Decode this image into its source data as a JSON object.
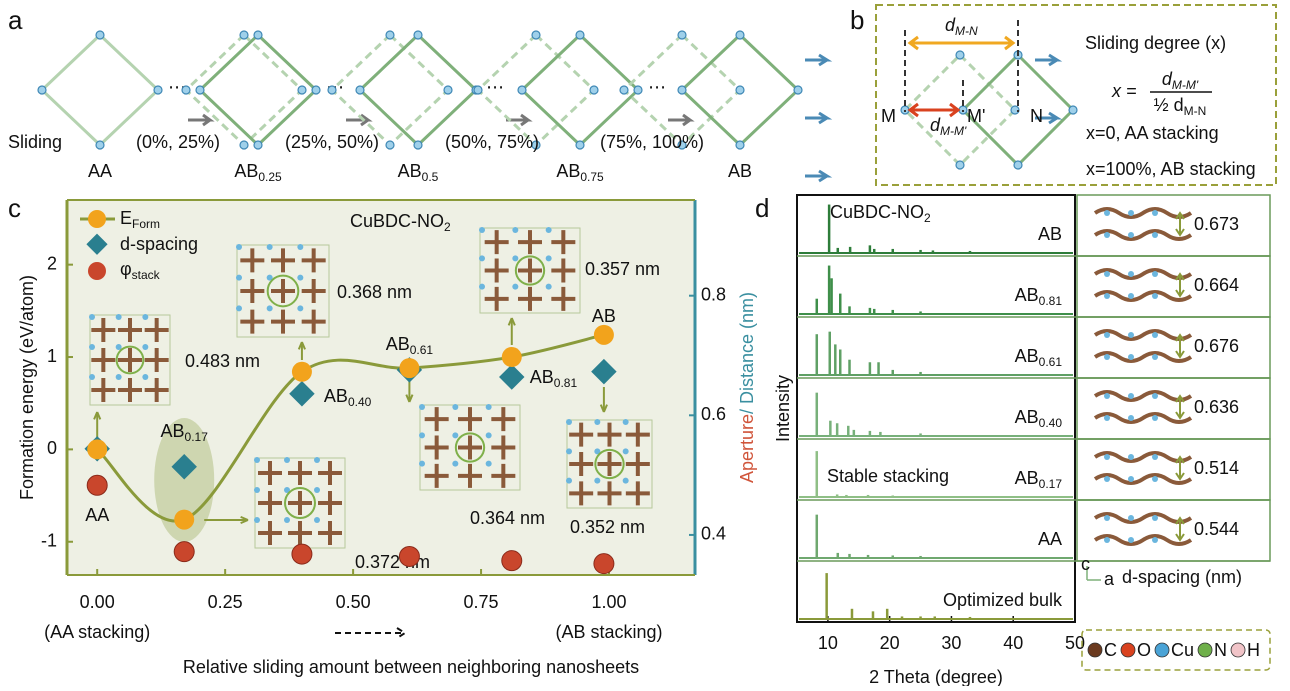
{
  "panel_a": {
    "label": "a",
    "sliding": "Sliding",
    "ranges": [
      "(0%, 25%)",
      "(25%, 50%)",
      "(50%, 75%)",
      "(75%, 100%)"
    ],
    "stages": [
      {
        "text": "AA"
      },
      {
        "text": "AB",
        "sub": "0.25"
      },
      {
        "text": "AB",
        "sub": "0.5"
      },
      {
        "text": "AB",
        "sub": "0.75"
      },
      {
        "text": "AB"
      }
    ]
  },
  "panel_b": {
    "label": "b",
    "title": "Sliding degree (x)",
    "formula_lhs": "x =",
    "numerator": {
      "text": "d",
      "sub": "M-M'"
    },
    "denominator": {
      "text": "½ d",
      "sub": "M-N"
    },
    "notes": [
      "x=0, AA stacking",
      "x=100%, AB stacking"
    ],
    "dist_mn": {
      "text": "d",
      "sub": "M-N"
    },
    "dist_mm": {
      "text": "d",
      "sub": "M-M'"
    },
    "points": [
      "M",
      "M'",
      "N"
    ]
  },
  "chart_data": [
    {
      "type": "scatter",
      "label": "c",
      "title": "CuBDC-NO",
      "title_sub": "2",
      "xlabel": "Relative sliding amount between neighboring nanosheets",
      "x_end_labels": [
        "(AA stacking)",
        "(AB stacking)"
      ],
      "ylabel": "Formation energy (eV/atom)",
      "y2label_a": "Aperture",
      "y2label_b": "/ Distance (nm)",
      "x": [
        0,
        0.17,
        0.4,
        0.61,
        0.81,
        0.99
      ],
      "point_labels": [
        {
          "text": "AA"
        },
        {
          "text": "AB",
          "sub": "0.17"
        },
        {
          "text": "AB",
          "sub": "0.40"
        },
        {
          "text": "AB",
          "sub": "0.61"
        },
        {
          "text": "AB",
          "sub": "0.81"
        },
        {
          "text": "AB"
        }
      ],
      "series": [
        {
          "name": "E",
          "name_sub": "Form",
          "color": "#f2a31c",
          "line_color": "#8a9a3a",
          "values": [
            0,
            -0.76,
            0.84,
            0.88,
            1.0,
            1.24
          ]
        },
        {
          "name": "d-spacing",
          "color": "#2a7f8f",
          "axis": "y2",
          "values": [
            0.544,
            0.514,
            0.636,
            0.676,
            0.664,
            0.673
          ]
        },
        {
          "name": "φ",
          "name_sub": "stack",
          "color": "#c9462c",
          "axis": "y2",
          "values": [
            0.483,
            0.372,
            0.368,
            0.364,
            0.357,
            0.352
          ],
          "value_labels": [
            "0.483 nm",
            "0.372 nm",
            "0.368 nm",
            "0.364 nm",
            "0.357 nm",
            "0.352 nm"
          ]
        }
      ],
      "xlim": [
        -0.059,
        1.168
      ],
      "xticks": [
        {
          "value": 0,
          "label": "0.00"
        },
        {
          "value": 0.25,
          "label": "0.25"
        },
        {
          "value": 0.5,
          "label": "0.50"
        },
        {
          "value": 0.75,
          "label": "0.75"
        },
        {
          "value": 1,
          "label": "1.00"
        }
      ],
      "ylim": [
        -1.36,
        2.7
      ],
      "yticks": [
        -1,
        0,
        1,
        2
      ],
      "y2lim": [
        0.333,
        0.96
      ],
      "y2ticks": [
        0.4,
        0.6,
        0.8
      ]
    },
    {
      "type": "spectra",
      "label": "d",
      "title": "CuBDC-NO",
      "title_sub": "2",
      "xlabel": "2 Theta (degree)",
      "ylabel": "Intensity",
      "xlim": [
        5,
        50
      ],
      "xticks": [
        10,
        20,
        30,
        40,
        50
      ],
      "spacing_label": "d-spacing (nm)",
      "note": "Stable stacking",
      "axes": [
        "c",
        "a"
      ],
      "atoms": [
        {
          "name": "C",
          "color": "#6b3a1f"
        },
        {
          "name": "O",
          "color": "#d9421f"
        },
        {
          "name": "Cu",
          "color": "#4aa3d6"
        },
        {
          "name": "N",
          "color": "#6fb04a"
        },
        {
          "name": "H",
          "color": "#f1c4c8"
        }
      ],
      "series": [
        {
          "name": "AB",
          "color": "#2e7d3a",
          "d_spacing": 0.673,
          "x": [
            10.2,
            11.6,
            13.6,
            16.8,
            17.5,
            20.5,
            25,
            27,
            33
          ],
          "values": [
            0.95,
            0.1,
            0.12,
            0.15,
            0.08,
            0.08,
            0.06,
            0.05,
            0.04
          ]
        },
        {
          "name": "AB",
          "name_sub": "0.81",
          "color": "#3f8f4a",
          "d_spacing": 0.664,
          "x": [
            8.2,
            10.2,
            10.6,
            12,
            13.5,
            16.8,
            17.5,
            20.5,
            25
          ],
          "values": [
            0.3,
            0.95,
            0.7,
            0.4,
            0.15,
            0.12,
            0.1,
            0.08,
            0.05
          ]
        },
        {
          "name": "AB",
          "name_sub": "0.61",
          "color": "#5fa065",
          "d_spacing": 0.676,
          "x": [
            8.2,
            10.3,
            11.2,
            12,
            13.5,
            16.8,
            18.2,
            20.5,
            25
          ],
          "values": [
            0.8,
            0.85,
            0.6,
            0.5,
            0.3,
            0.25,
            0.25,
            0.1,
            0.06
          ]
        },
        {
          "name": "AB",
          "name_sub": "0.40",
          "color": "#77b07a",
          "d_spacing": 0.636,
          "x": [
            8.2,
            10.4,
            11.5,
            13.3,
            14.2,
            16.8,
            18.5,
            25
          ],
          "values": [
            0.85,
            0.3,
            0.25,
            0.2,
            0.12,
            0.1,
            0.08,
            0.05
          ]
        },
        {
          "name": "AB",
          "name_sub": "0.17",
          "color": "#8fbf86",
          "d_spacing": 0.514,
          "x": [
            8.2,
            11.5,
            13,
            16.5,
            20.5
          ],
          "values": [
            0.9,
            0.05,
            0.04,
            0.04,
            0.03
          ]
        },
        {
          "name": "AA",
          "color": "#6fa86f",
          "d_spacing": 0.544,
          "x": [
            8.2,
            11.6,
            13.5,
            16.5,
            20.5,
            25
          ],
          "values": [
            0.85,
            0.1,
            0.08,
            0.06,
            0.05,
            0.04
          ]
        },
        {
          "name": "Optimized bulk",
          "color": "#8a9a3a",
          "x": [
            9.8,
            13.9,
            17.3,
            19.6,
            22,
            25,
            27.3,
            33
          ],
          "values": [
            0.9,
            0.2,
            0.15,
            0.2,
            0.05,
            0.05,
            0.05,
            0.04
          ]
        }
      ]
    }
  ]
}
